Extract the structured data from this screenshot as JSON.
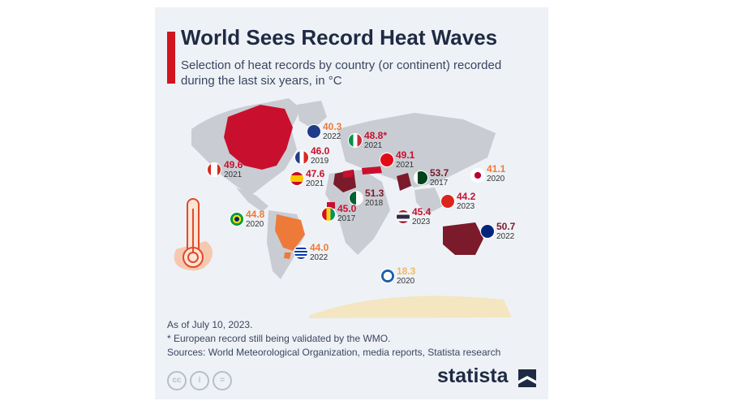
{
  "header": {
    "title": "World Sees Record Heat Waves",
    "subtitle": "Selection of heat records by country (or continent) recorded during the last six years, in °C"
  },
  "colors": {
    "accent": "#d1141e",
    "high": "#c8102e",
    "mid": "#ee7a3a",
    "low": "#f1b85e",
    "dark": "#7a1a2a",
    "land": "#c9cdd3"
  },
  "records": [
    {
      "country": "Canada",
      "value": "49.6",
      "year": "2021",
      "color": "#c8102e",
      "flag": "canada-flag-icon"
    },
    {
      "country": "United Kingdom",
      "value": "40.3",
      "year": "2022",
      "color": "#ee7a3a",
      "flag": "uk-flag-icon"
    },
    {
      "country": "France",
      "value": "46.0",
      "year": "2019",
      "color": "#c8102e",
      "flag": "france-flag-icon"
    },
    {
      "country": "Spain",
      "value": "47.6",
      "year": "2021",
      "color": "#c8102e",
      "flag": "spain-flag-icon"
    },
    {
      "country": "Italy",
      "value": "48.8*",
      "year": "2021",
      "color": "#c8102e",
      "flag": "italy-flag-icon"
    },
    {
      "country": "Turkey",
      "value": "49.1",
      "year": "2021",
      "color": "#c8102e",
      "flag": "turkey-flag-icon"
    },
    {
      "country": "Pakistan",
      "value": "53.7",
      "year": "2017",
      "color": "#7a1a2a",
      "flag": "pakistan-flag-icon"
    },
    {
      "country": "Japan",
      "value": "41.1",
      "year": "2020",
      "color": "#ee7a3a",
      "flag": "japan-flag-icon"
    },
    {
      "country": "Algeria",
      "value": "51.3",
      "year": "2018",
      "color": "#7a1a2a",
      "flag": "algeria-flag-icon"
    },
    {
      "country": "Guinea",
      "value": "45.0",
      "year": "2017",
      "color": "#c8102e",
      "flag": "guinea-flag-icon"
    },
    {
      "country": "Vietnam",
      "value": "44.2",
      "year": "2023",
      "color": "#c8102e",
      "flag": "vietnam-flag-icon"
    },
    {
      "country": "Thailand",
      "value": "45.4",
      "year": "2023",
      "color": "#c8102e",
      "flag": "thailand-flag-icon"
    },
    {
      "country": "Brazil",
      "value": "44.8",
      "year": "2020",
      "color": "#ee7a3a",
      "flag": "brazil-flag-icon"
    },
    {
      "country": "Uruguay",
      "value": "44.0",
      "year": "2022",
      "color": "#ee7a3a",
      "flag": "uruguay-flag-icon"
    },
    {
      "country": "Australia",
      "value": "50.7",
      "year": "2022",
      "color": "#7a1a2a",
      "flag": "australia-flag-icon"
    },
    {
      "country": "Antarctica",
      "value": "18.3",
      "year": "2020",
      "color": "#f1b85e",
      "flag": "antarctica-icon"
    }
  ],
  "footer": {
    "date": "As of July 10, 2023.",
    "note": "* European record still being validated by the WMO.",
    "sources": "Sources: World Meteorological Organization, media reports, Statista research"
  },
  "license_icons": [
    "cc-icon",
    "attribution-icon",
    "no-derivatives-icon"
  ],
  "brand": "statista"
}
